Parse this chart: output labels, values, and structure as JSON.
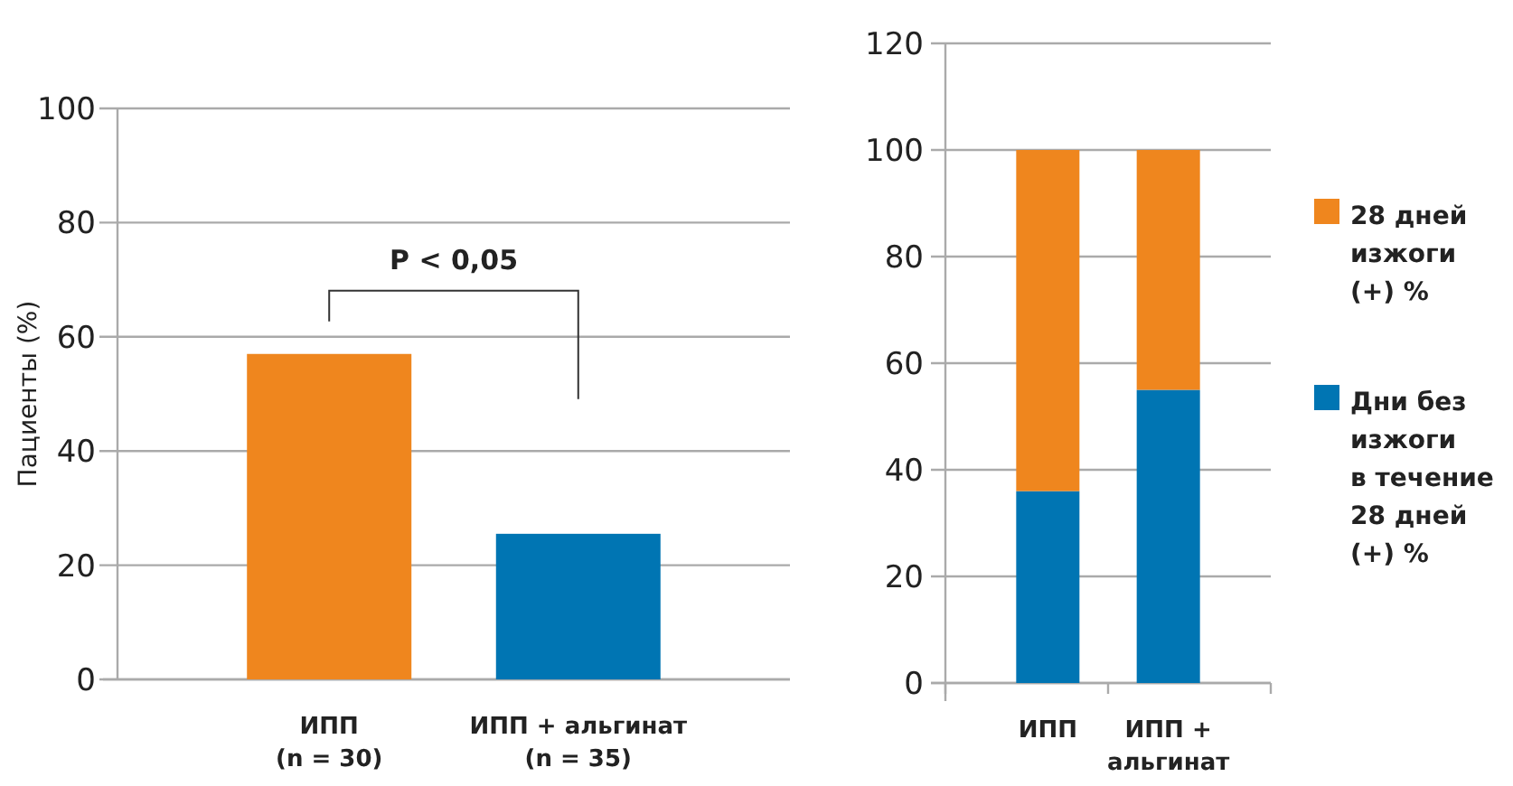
{
  "chart_data": [
    {
      "type": "bar",
      "ylabel": "Пациенты (%)",
      "categories": [
        "ИПП (n = 30)",
        "ИПП + альгинат (n = 35)"
      ],
      "values": [
        57,
        25.5
      ],
      "colors": [
        "#ef861e",
        "#0075b3"
      ],
      "ylim": [
        0,
        100
      ],
      "yticks": [
        0,
        20,
        40,
        60,
        80,
        100
      ],
      "grid": "y",
      "annotations": [
        "P < 0,05"
      ],
      "legend": false
    },
    {
      "type": "bar",
      "stacked": true,
      "categories": [
        "ИПП",
        "ИПП + альгинат"
      ],
      "ylim": [
        0,
        120
      ],
      "yticks": [
        0,
        20,
        40,
        60,
        80,
        100,
        120
      ],
      "grid": "y",
      "legend": "right",
      "series": [
        {
          "name": "Дни без изжоги в течение 28 дней (+) %",
          "color": "#0075b3",
          "values": [
            36,
            55
          ]
        },
        {
          "name": "28 дней изжоги (+) %",
          "color": "#ef861e",
          "values": [
            64,
            45
          ]
        }
      ]
    }
  ]
}
